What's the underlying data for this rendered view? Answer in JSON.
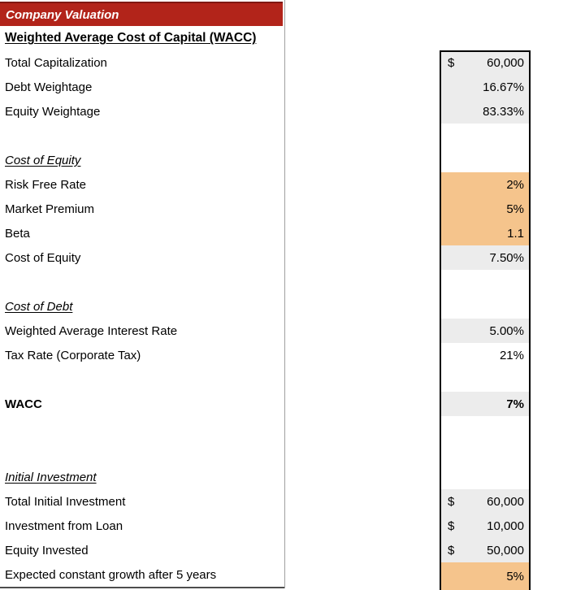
{
  "header": {
    "title": "Company Valuation"
  },
  "colors": {
    "header_bg": "#B2241A",
    "header_edge": "#801812",
    "input_fill": "#F5C48C",
    "calc_fill": "#ECECEC",
    "box_border": "#000000",
    "gridline": "#A0A0A0",
    "label_rule": "#4d4d4d"
  },
  "table": {
    "rows": [
      {
        "label": "Weighted Average Cost of Capital (WACC)",
        "label_style": "bold-underline"
      },
      {
        "label": "Total Capitalization",
        "currency": "$",
        "value": "60,000",
        "cell": "calc"
      },
      {
        "label": "Debt Weightage",
        "value": "16.67%",
        "cell": "calc"
      },
      {
        "label": "Equity Weightage",
        "value": "83.33%",
        "cell": "calc"
      },
      {
        "label": "",
        "cell": "plain"
      },
      {
        "label": "Cost of Equity",
        "label_style": "italic-underline",
        "cell": "plain"
      },
      {
        "label": "Risk Free Rate",
        "value": "2%",
        "cell": "input"
      },
      {
        "label": "Market Premium",
        "value": "5%",
        "cell": "input"
      },
      {
        "label": "Beta",
        "value": "1.1",
        "cell": "input"
      },
      {
        "label": "Cost of Equity",
        "value": "7.50%",
        "cell": "calc"
      },
      {
        "label": "",
        "cell": "plain"
      },
      {
        "label": "Cost of Debt",
        "label_style": "italic-underline",
        "cell": "plain"
      },
      {
        "label": "Weighted Average Interest Rate",
        "value": "5.00%",
        "cell": "calc"
      },
      {
        "label": "Tax Rate (Corporate Tax)",
        "value": "21%",
        "cell": "plain"
      },
      {
        "label": "",
        "cell": "plain"
      },
      {
        "label": "WACC",
        "label_style": "bold",
        "value": "7%",
        "value_bold": true,
        "cell": "calc"
      },
      {
        "label": "",
        "cell": "plain"
      },
      {
        "label": "",
        "cell": "plain"
      },
      {
        "label": "Initial Investment",
        "label_style": "italic-underline",
        "cell": "plain"
      },
      {
        "label": "Total Initial Investment",
        "currency": "$",
        "value": "60,000",
        "cell": "calc"
      },
      {
        "label": "Investment from Loan",
        "currency": "$",
        "value": "10,000",
        "cell": "calc"
      },
      {
        "label": "Equity Invested",
        "currency": "$",
        "value": "50,000",
        "cell": "calc"
      },
      {
        "label": "Expected constant growth after 5 years",
        "value": "5%",
        "cell": "input",
        "last": true
      }
    ]
  }
}
